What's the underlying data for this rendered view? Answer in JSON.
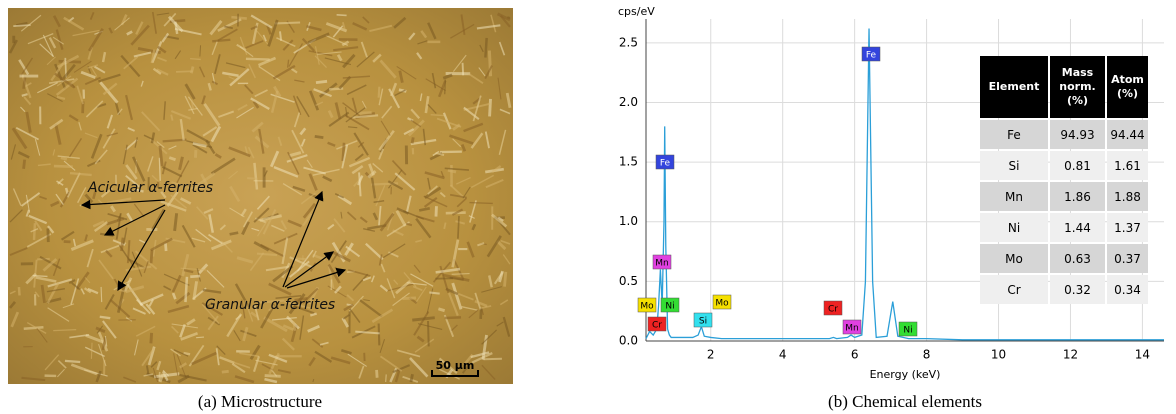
{
  "micrograph": {
    "annotations": [
      "Acicular α-ferrites",
      "Granular α-ferrites"
    ],
    "scale_bar": "50 µm"
  },
  "captions": [
    "(a) Microstructure",
    "(b) Chemical elements"
  ],
  "chart_data": {
    "type": "line",
    "y_label": "cps/eV",
    "x_label": "Energy (keV)",
    "xlim": [
      0.2,
      14.6
    ],
    "ylim": [
      0,
      2.7
    ],
    "xticks": [
      2,
      4,
      6,
      8,
      10,
      12,
      14
    ],
    "yticks": [
      {
        "value": 0,
        "label": "0.0"
      },
      0.5,
      {
        "value": 1,
        "label": "1.0"
      },
      1.5,
      {
        "value": 2,
        "label": "2.0"
      },
      2.5
    ],
    "grid": true,
    "series": [
      {
        "color": "#2b9fd8",
        "x": [
          0.2,
          0.3,
          0.4,
          0.5,
          0.55,
          0.6,
          0.65,
          0.7,
          0.72,
          0.75,
          0.8,
          0.85,
          0.9,
          1.0,
          1.2,
          1.5,
          1.65,
          1.74,
          1.82,
          2.0,
          2.3,
          3,
          4,
          5,
          5.3,
          5.41,
          5.5,
          5.8,
          5.9,
          6.0,
          6.2,
          6.3,
          6.4,
          6.5,
          6.6,
          6.9,
          7.06,
          7.2,
          7.5,
          8,
          9,
          10,
          12,
          14,
          14.6
        ],
        "values": [
          0.02,
          0.08,
          0.05,
          0.1,
          0.3,
          0.6,
          0.3,
          1.0,
          1.8,
          0.8,
          0.1,
          0.05,
          0.03,
          0.03,
          0.03,
          0.03,
          0.05,
          0.12,
          0.04,
          0.03,
          0.02,
          0.02,
          0.02,
          0.02,
          0.02,
          0.03,
          0.02,
          0.03,
          0.05,
          0.03,
          0.05,
          0.5,
          2.62,
          0.5,
          0.03,
          0.04,
          0.33,
          0.04,
          0.02,
          0.02,
          0.01,
          0.01,
          0.01,
          0.01,
          0.01
        ]
      }
    ],
    "tags": [
      {
        "label": "Fe",
        "color": "#3344dd"
      },
      {
        "label": "Fe",
        "color": "#3344dd"
      },
      {
        "label": "Mn",
        "color": "#e040e0"
      },
      {
        "label": "Mo",
        "color": "#f5e000"
      },
      {
        "label": "Ni",
        "color": "#33dd33"
      },
      {
        "label": "Cr",
        "color": "#ee2222"
      },
      {
        "label": "Si",
        "color": "#33e0ee"
      },
      {
        "label": "Mo",
        "color": "#f5e000"
      },
      {
        "label": "Cr",
        "color": "#ee2222"
      },
      {
        "label": "Mn",
        "color": "#e040e0"
      },
      {
        "label": "Ni",
        "color": "#33dd33"
      }
    ],
    "table": {
      "header": [
        "Element",
        "Mass norm. (%)",
        "Atom (%)"
      ],
      "rows": [
        [
          "Fe",
          "94.93",
          "94.44"
        ],
        [
          "Si",
          "0.81",
          "1.61"
        ],
        [
          "Mn",
          "1.86",
          "1.88"
        ],
        [
          "Ni",
          "1.44",
          "1.37"
        ],
        [
          "Mo",
          "0.63",
          "0.37"
        ],
        [
          "Cr",
          "0.32",
          "0.34"
        ]
      ]
    }
  }
}
